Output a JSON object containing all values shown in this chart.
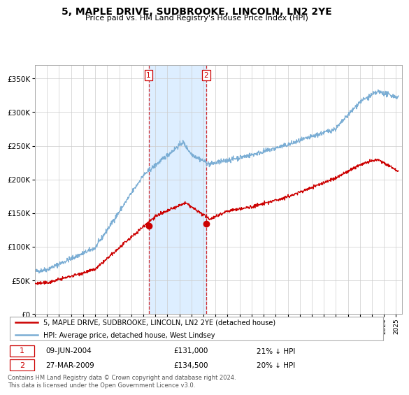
{
  "title": "5, MAPLE DRIVE, SUDBROOKE, LINCOLN, LN2 2YE",
  "subtitle": "Price paid vs. HM Land Registry's House Price Index (HPI)",
  "legend_label_red": "5, MAPLE DRIVE, SUDBROOKE, LINCOLN, LN2 2YE (detached house)",
  "legend_label_blue": "HPI: Average price, detached house, West Lindsey",
  "transaction1_date": "09-JUN-2004",
  "transaction1_price": "£131,000",
  "transaction1_hpi": "21% ↓ HPI",
  "transaction2_date": "27-MAR-2009",
  "transaction2_price": "£134,500",
  "transaction2_hpi": "20% ↓ HPI",
  "footer": "Contains HM Land Registry data © Crown copyright and database right 2024.\nThis data is licensed under the Open Government Licence v3.0.",
  "shaded_region1_start": 2004.44,
  "shaded_region1_end": 2009.23,
  "marker1_x": 2004.44,
  "marker1_y": 131000,
  "marker2_x": 2009.23,
  "marker2_y": 134500,
  "red_color": "#cc0000",
  "blue_color": "#7aadd4",
  "shade_color": "#ddeeff",
  "background_color": "#ffffff",
  "grid_color": "#cccccc",
  "yticks": [
    0,
    50000,
    100000,
    150000,
    200000,
    250000,
    300000,
    350000
  ],
  "ylim": [
    0,
    370000
  ],
  "xlim_start": 1995.0,
  "xlim_end": 2025.5
}
